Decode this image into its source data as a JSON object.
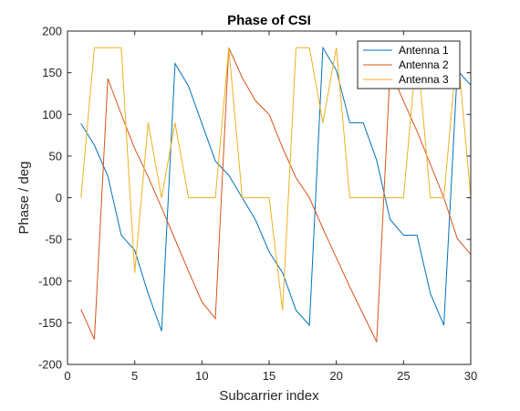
{
  "chart_data": {
    "type": "line",
    "title": "Phase of CSI",
    "xlabel": "Subcarrier index",
    "ylabel": "Phase / deg",
    "xlim": [
      0,
      30
    ],
    "ylim": [
      -200,
      200
    ],
    "xticks": [
      0,
      5,
      10,
      15,
      20,
      25,
      30
    ],
    "yticks": [
      -200,
      -150,
      -100,
      -50,
      0,
      50,
      100,
      150,
      200
    ],
    "grid": false,
    "legend_position": "top-right",
    "series": [
      {
        "name": "Antenna 1",
        "color": "#0072BD",
        "x": [
          1,
          2,
          3,
          4,
          5,
          6,
          7,
          8,
          9,
          10,
          11,
          12,
          13,
          14,
          15,
          16,
          17,
          18,
          19,
          20,
          21,
          22,
          23,
          24,
          25,
          26,
          27,
          28,
          29,
          30
        ],
        "y": [
          89,
          63,
          26,
          -45,
          -63,
          -115,
          -160,
          161,
          134,
          89,
          44,
          27,
          0,
          -27,
          -65,
          -90,
          -135,
          -153,
          180,
          153,
          90,
          90,
          45,
          -26,
          -45,
          -45,
          -115,
          -153,
          153,
          135
        ]
      },
      {
        "name": "Antenna 2",
        "color": "#D95319",
        "x": [
          1,
          2,
          3,
          4,
          5,
          6,
          7,
          8,
          9,
          10,
          11,
          12,
          13,
          14,
          15,
          16,
          17,
          18,
          19,
          20,
          21,
          22,
          23,
          24,
          25,
          26,
          27,
          28,
          29,
          30
        ],
        "y": [
          -134,
          -170,
          143,
          100,
          59,
          25,
          -12,
          -50,
          -88,
          -125,
          -145,
          180,
          144,
          116,
          100,
          60,
          24,
          0,
          -37,
          -72,
          -107,
          -140,
          -173,
          153,
          116,
          80,
          40,
          0,
          -49,
          -68
        ]
      },
      {
        "name": "Antenna 3",
        "color": "#EDB120",
        "x": [
          1,
          2,
          3,
          4,
          5,
          6,
          7,
          8,
          9,
          10,
          11,
          12,
          13,
          14,
          15,
          16,
          17,
          18,
          19,
          20,
          21,
          22,
          23,
          24,
          25,
          26,
          27,
          28,
          29,
          30
        ],
        "y": [
          0,
          180,
          180,
          180,
          -90,
          90,
          0,
          90,
          0,
          0,
          0,
          180,
          0,
          0,
          0,
          -135,
          180,
          180,
          90,
          180,
          0,
          0,
          0,
          0,
          0,
          180,
          0,
          0,
          180,
          0
        ]
      }
    ]
  }
}
